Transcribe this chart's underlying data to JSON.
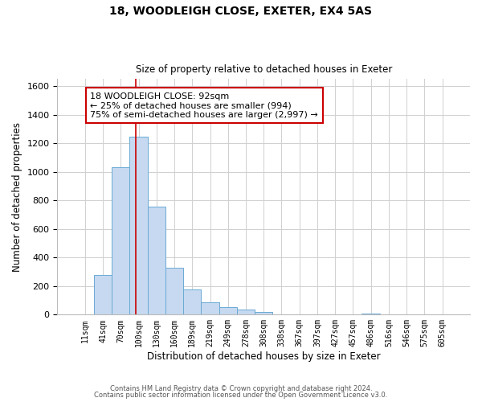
{
  "title": "18, WOODLEIGH CLOSE, EXETER, EX4 5AS",
  "subtitle": "Size of property relative to detached houses in Exeter",
  "xlabel": "Distribution of detached houses by size in Exeter",
  "ylabel": "Number of detached properties",
  "bar_labels": [
    "11sqm",
    "41sqm",
    "70sqm",
    "100sqm",
    "130sqm",
    "160sqm",
    "189sqm",
    "219sqm",
    "249sqm",
    "278sqm",
    "308sqm",
    "338sqm",
    "367sqm",
    "397sqm",
    "427sqm",
    "457sqm",
    "486sqm",
    "516sqm",
    "546sqm",
    "575sqm",
    "605sqm"
  ],
  "bar_heights": [
    0,
    280,
    1035,
    1248,
    755,
    330,
    175,
    85,
    50,
    38,
    20,
    0,
    0,
    0,
    0,
    0,
    10,
    0,
    0,
    0,
    0
  ],
  "bar_color": "#c6d9f0",
  "bar_edge_color": "#6aaad4",
  "vline_x_idx": 2.82,
  "vline_color": "#cc0000",
  "ylim": [
    0,
    1650
  ],
  "yticks": [
    0,
    200,
    400,
    600,
    800,
    1000,
    1200,
    1400,
    1600
  ],
  "annotation_line1": "18 WOODLEIGH CLOSE: 92sqm",
  "annotation_line2": "← 25% of detached houses are smaller (994)",
  "annotation_line3": "75% of semi-detached houses are larger (2,997) →",
  "annotation_box_color": "#ffffff",
  "annotation_box_edge": "#cc0000",
  "footer_line1": "Contains HM Land Registry data © Crown copyright and database right 2024.",
  "footer_line2": "Contains public sector information licensed under the Open Government Licence v3.0.",
  "background_color": "#ffffff",
  "grid_color": "#d0d0d0"
}
